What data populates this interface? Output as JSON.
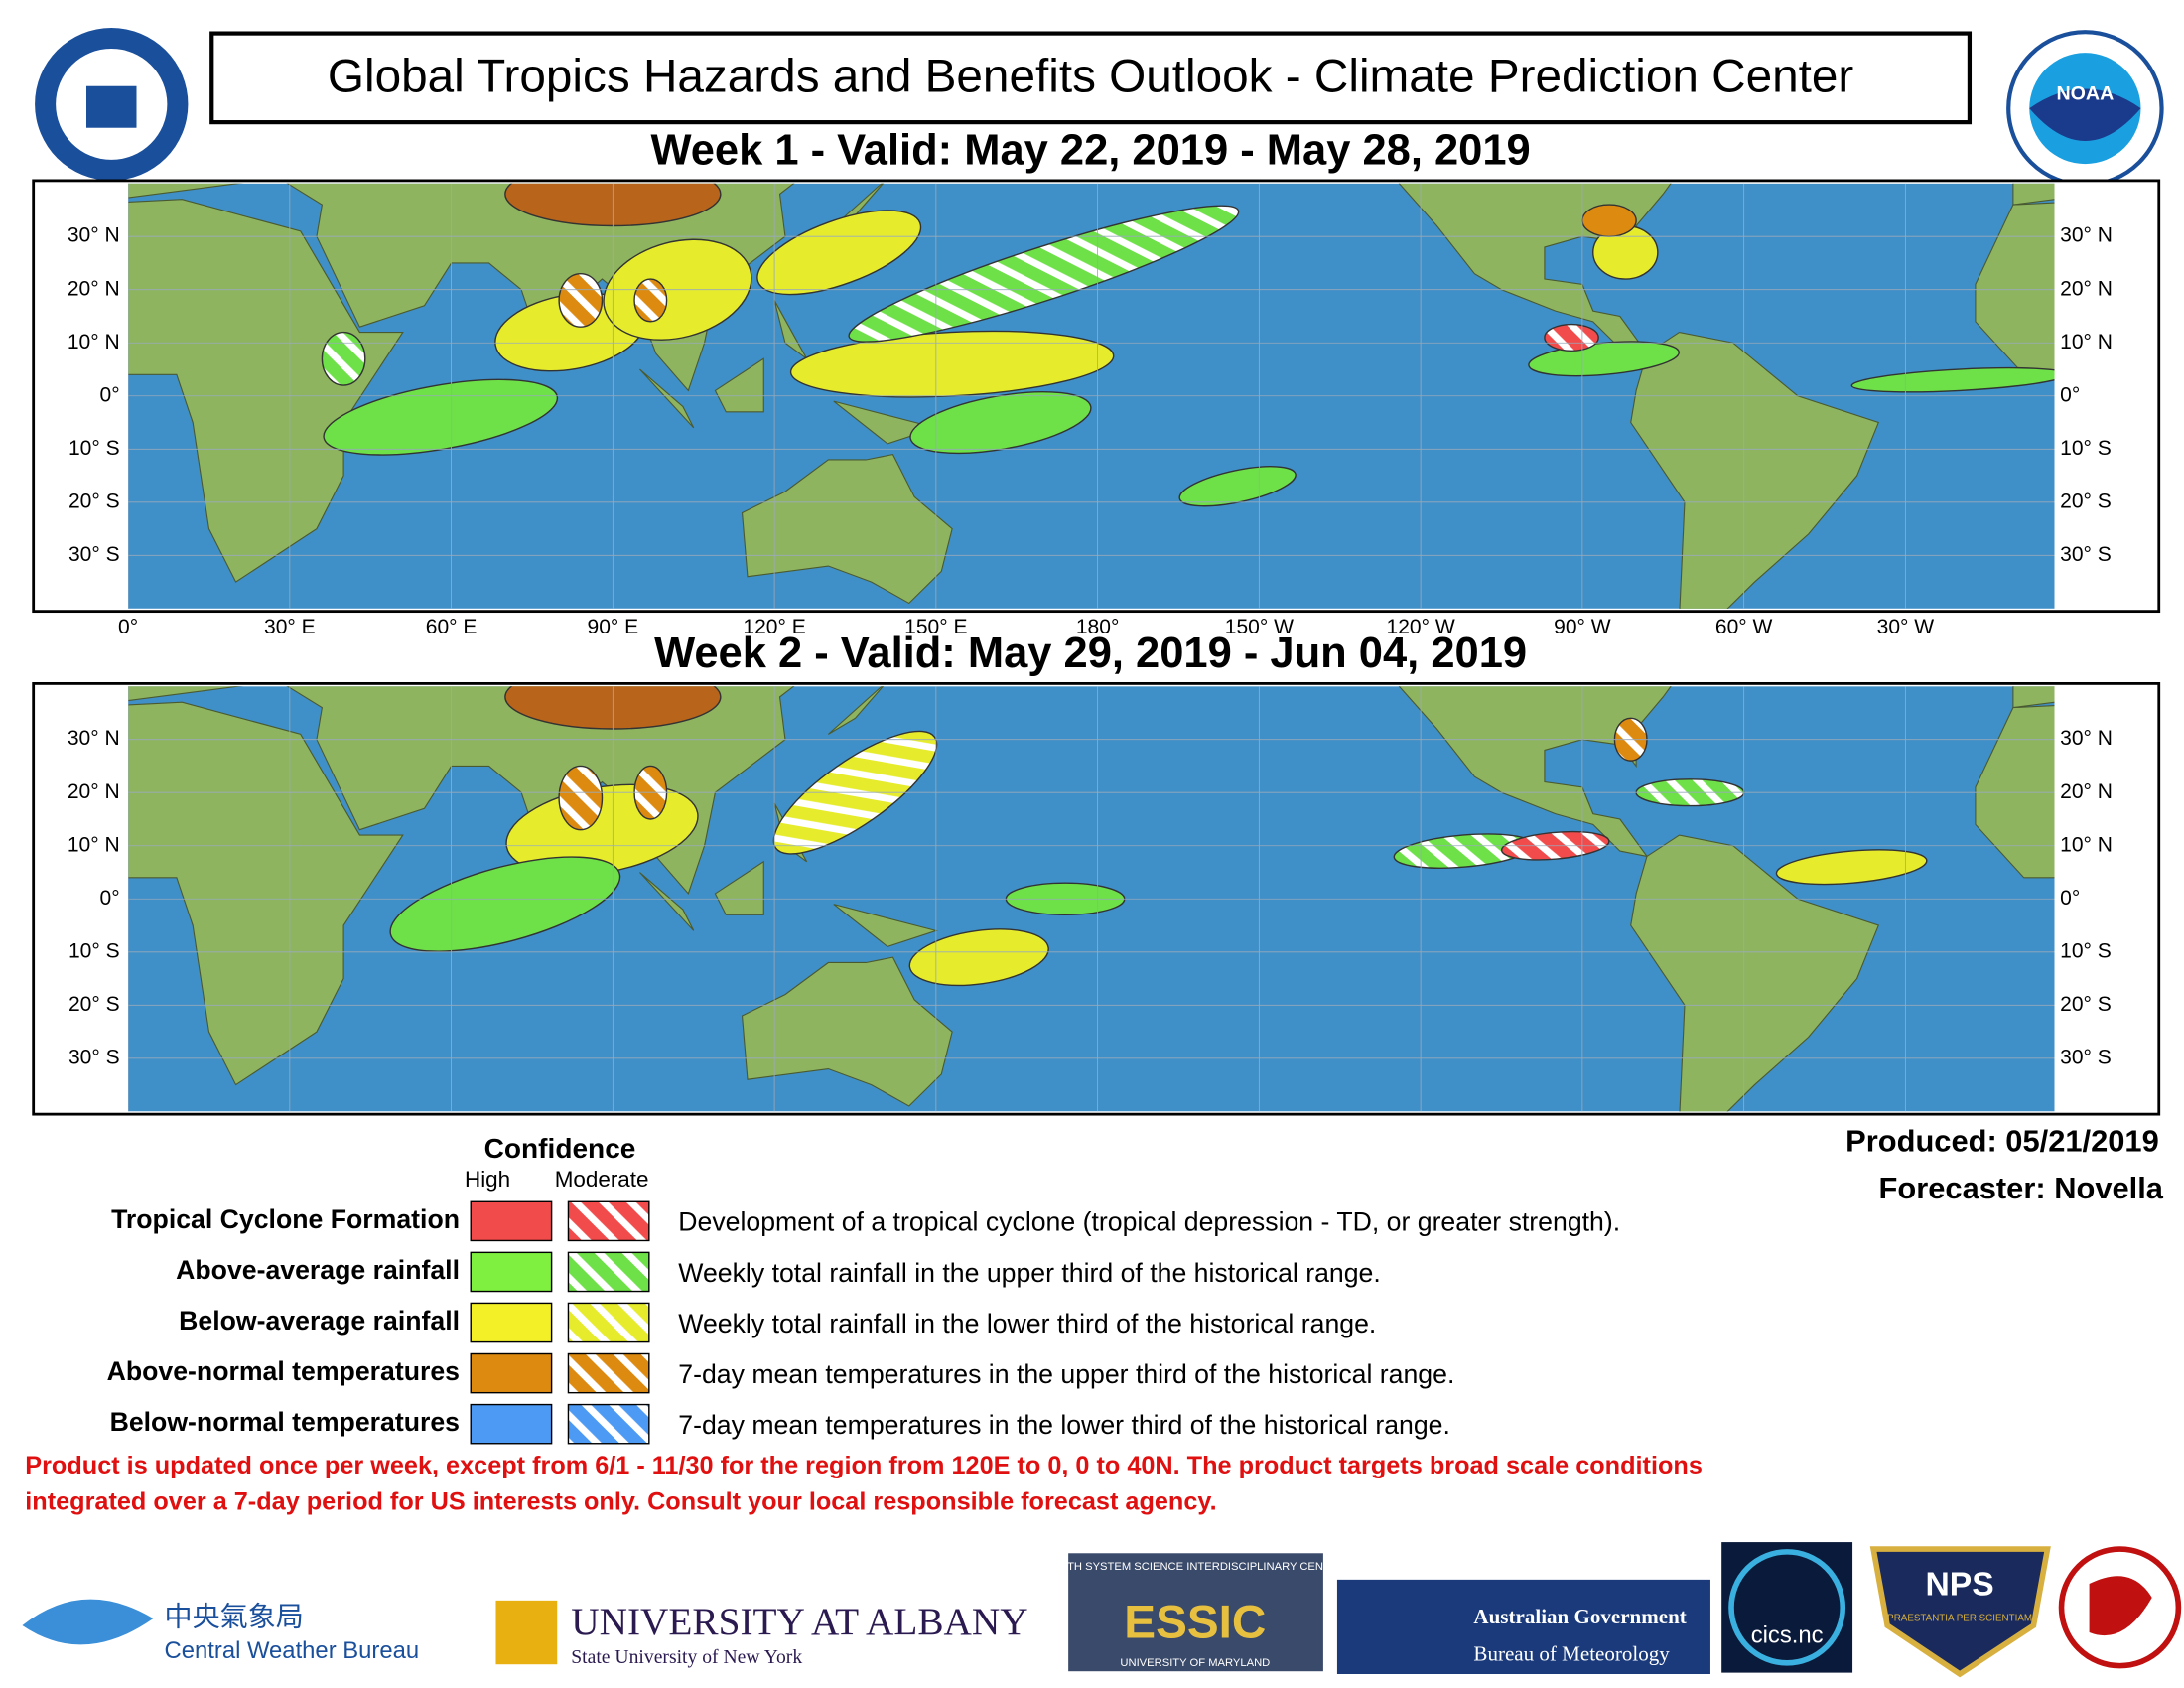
{
  "header": {
    "title": "Global Tropics Hazards and Benefits Outlook - Climate Prediction Center",
    "noaa": "NOAA"
  },
  "panels": [
    {
      "title": "Week 1 - Valid: May 22, 2019 - May 28, 2019"
    },
    {
      "title": "Week 2 - Valid: May 29, 2019 - Jun 04, 2019"
    }
  ],
  "map": {
    "lat_labels": [
      "30° N",
      "20° N",
      "10° N",
      "0°",
      "10° S",
      "20° S",
      "30° S"
    ],
    "lon_labels": [
      "0°",
      "30° E",
      "60° E",
      "90° E",
      "120° E",
      "150° E",
      "180°",
      "150° W",
      "120° W",
      "90° W",
      "60° W",
      "30° W"
    ]
  },
  "legend": {
    "confidence": "Confidence",
    "high": "High",
    "moderate": "Moderate",
    "rows": [
      {
        "label": "Tropical Cyclone Formation",
        "description": "Development of a tropical cyclone (tropical depression - TD, or greater strength)."
      },
      {
        "label": "Above-average rainfall",
        "description": "Weekly total rainfall in the upper third of the historical range."
      },
      {
        "label": "Below-average rainfall",
        "description": "Weekly total rainfall in the lower third of the historical range."
      },
      {
        "label": "Above-normal temperatures",
        "description": "7-day mean temperatures in the upper third of the historical range."
      },
      {
        "label": "Below-normal temperatures",
        "description": "7-day mean temperatures in the lower third of the historical range."
      }
    ]
  },
  "produced": "Produced: 05/21/2019",
  "forecaster": "Forecaster: Novella",
  "disclaimer": [
    "Product is updated once per week, except from 6/1 - 11/30 for the region from 120E to 0, 0 to 40N. The product targets broad scale conditions",
    "integrated over a 7-day period for US interests only.  Consult your local responsible forecast agency."
  ],
  "logos": {
    "cwb_cn": "中央氣象局",
    "cwb_en": "Central Weather Bureau",
    "albany": "UNIVERSITY AT ALBANY",
    "albany_sub": "State University of New York",
    "essic_top": "EARTH SYSTEM SCIENCE INTERDISCIPLINARY CENTER",
    "essic": "ESSIC",
    "essic_sub": "UNIVERSITY OF MARYLAND",
    "aus1": "Australian Government",
    "aus2": "Bureau of Meteorology",
    "cics": "cics.nc",
    "nps": "NPS",
    "nps_sub": "PRAESTANTIA PER SCIENTIAM"
  }
}
